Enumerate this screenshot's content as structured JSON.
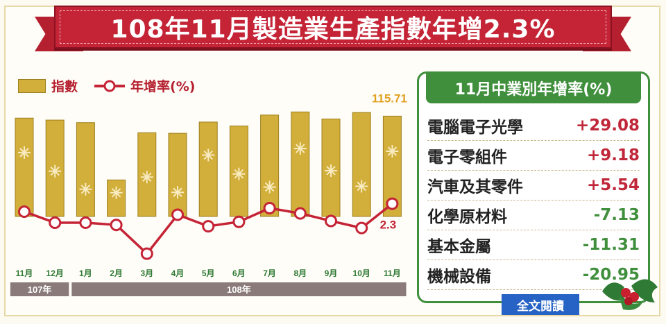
{
  "title": "108年11月製造業生產指數年增2.3%",
  "legend": {
    "index_label": "指數",
    "growth_label": "年增率(%)"
  },
  "colors": {
    "bar": "#d2ae3a",
    "bar_edge": "#9c8020",
    "line": "#c42436",
    "panel": "#3f8f3c",
    "up": "#c0283a",
    "down": "#3f8f3c"
  },
  "chart_data": {
    "type": "bar",
    "categories": [
      "11月",
      "12月",
      "1月",
      "2月",
      "3月",
      "4月",
      "5月",
      "6月",
      "7月",
      "8月",
      "9月",
      "10月",
      "11月"
    ],
    "year_groups": [
      {
        "label": "107年",
        "count": 2
      },
      {
        "label": "108年",
        "count": 11
      }
    ],
    "series": [
      {
        "name": "指數",
        "type": "bar",
        "values": [
          115.0,
          114.3,
          113.4,
          93.0,
          109.8,
          109.6,
          113.6,
          112.2,
          116.1,
          117.2,
          114.7,
          117.0,
          115.71
        ]
      },
      {
        "name": "年增率(%)",
        "type": "line",
        "values": [
          0.5,
          -2.0,
          -2.0,
          -2.5,
          -9.0,
          -0.2,
          -2.8,
          -1.8,
          1.3,
          0.1,
          -1.6,
          -3.2,
          2.3
        ]
      }
    ],
    "bar_ylim": [
      80,
      120
    ],
    "line_ylim": [
      -10,
      6
    ],
    "annotations": {
      "last_index": "115.71",
      "last_growth": "2.3"
    },
    "grid": false,
    "legend_position": "top-left"
  },
  "side_panel": {
    "title": "11月中業別年增率(%)",
    "rows": [
      {
        "name": "電腦電子光學",
        "value": "+29.08",
        "dir": "up"
      },
      {
        "name": "電子零組件",
        "value": "+9.18",
        "dir": "up"
      },
      {
        "name": "汽車及其零件",
        "value": "+5.54",
        "dir": "up"
      },
      {
        "name": "化學原材料",
        "value": "-7.13",
        "dir": "down"
      },
      {
        "name": "基本金屬",
        "value": "-11.31",
        "dir": "down"
      },
      {
        "name": "機械設備",
        "value": "-20.95",
        "dir": "down"
      }
    ]
  },
  "read_more": "全文閱讀"
}
